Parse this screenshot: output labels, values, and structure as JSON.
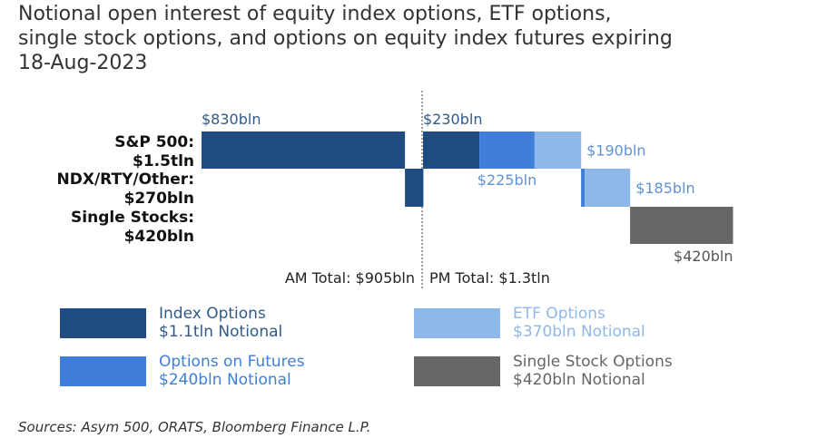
{
  "title_lines": [
    "Notional open interest of equity index options, ETF options,",
    "single stock options, and options on equity index futures expiring",
    "18-Aug-2023"
  ],
  "colors": {
    "index": "#1f4b80",
    "futures": "#3f7fd9",
    "etf": "#8fb8ea",
    "single": "#666666",
    "label_blue": "#5f93d6",
    "label_dark": "#2f5a8a"
  },
  "chart_data": {
    "type": "bar",
    "subtype": "waterfall",
    "units": "USD billions notional",
    "row_labels": [
      {
        "lines": [
          "S&P 500:",
          "$1.5tln"
        ]
      },
      {
        "lines": [
          "NDX/RTY/Other:",
          "$270bln"
        ]
      },
      {
        "lines": [
          "Single Stocks:",
          "$420bln"
        ]
      }
    ],
    "segments": [
      {
        "row": 0,
        "session": "AM",
        "category": "index",
        "value": 830,
        "label": "$830bln"
      },
      {
        "row": 1,
        "session": "AM",
        "category": "index",
        "value": 75,
        "label": ""
      },
      {
        "row": 0,
        "session": "PM",
        "category": "index",
        "value": 230,
        "label": "$230bln"
      },
      {
        "row": 0,
        "session": "PM",
        "category": "futures",
        "value": 225,
        "label": "$225bln"
      },
      {
        "row": 0,
        "session": "PM",
        "category": "etf",
        "value": 190,
        "label": "$190bln"
      },
      {
        "row": 1,
        "session": "PM",
        "category": "futures",
        "value": 15,
        "label": ""
      },
      {
        "row": 1,
        "session": "PM",
        "category": "etf",
        "value": 185,
        "label": "$185bln"
      },
      {
        "row": 2,
        "session": "PM",
        "category": "single",
        "value": 420,
        "label": "$420bln"
      }
    ],
    "session_totals": {
      "am": "AM Total: $905bln",
      "pm": "PM Total: $1.3tln"
    },
    "legend": [
      {
        "category": "index",
        "name": "Index Options",
        "sub": "$1.1tln Notional"
      },
      {
        "category": "etf",
        "name": "ETF Options",
        "sub": "$370bln Notional"
      },
      {
        "category": "futures",
        "name": "Options on Futures",
        "sub": "$240bln Notional"
      },
      {
        "category": "single",
        "name": "Single Stock Options",
        "sub": "$420bln Notional"
      }
    ]
  },
  "source": "Sources: Asym 500, ORATS, Bloomberg Finance L.P."
}
